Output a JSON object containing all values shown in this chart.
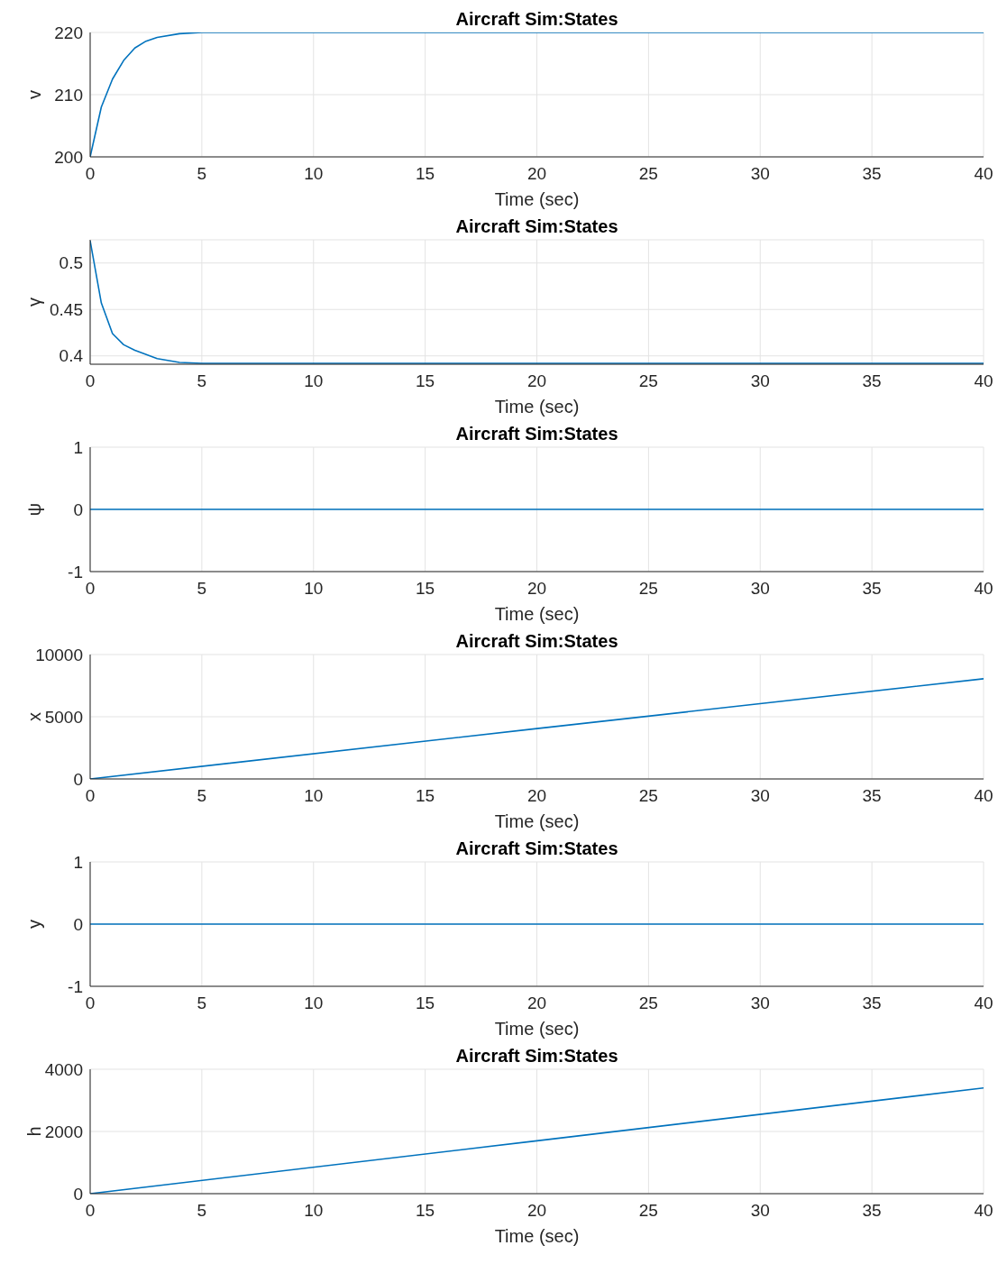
{
  "chart_data": [
    {
      "type": "line",
      "title": "Aircraft Sim:States",
      "xlabel": "Time (sec)",
      "ylabel": "v",
      "x": [
        0,
        0.5,
        1,
        1.5,
        2,
        2.5,
        3,
        4,
        5,
        40
      ],
      "values": [
        200,
        208,
        212.5,
        215.5,
        217.5,
        218.6,
        219.2,
        219.8,
        220,
        220
      ],
      "color": "#0072bd",
      "xlim": [
        0,
        40
      ],
      "xticks": [
        0,
        5,
        10,
        15,
        20,
        25,
        30,
        35,
        40
      ],
      "ylim": [
        200,
        220
      ],
      "yticks": [
        200,
        210,
        220
      ],
      "grid": true,
      "marker": "none",
      "line_style": "solid"
    },
    {
      "type": "line",
      "title": "Aircraft Sim:States",
      "xlabel": "Time (sec)",
      "ylabel": "γ",
      "x": [
        0,
        0.5,
        1,
        1.5,
        2,
        3,
        4,
        5,
        40
      ],
      "values": [
        0.524,
        0.457,
        0.424,
        0.412,
        0.406,
        0.397,
        0.393,
        0.392,
        0.392
      ],
      "color": "#0072bd",
      "xlim": [
        0,
        40
      ],
      "xticks": [
        0,
        5,
        10,
        15,
        20,
        25,
        30,
        35,
        40
      ],
      "ylim": [
        0.391,
        0.525
      ],
      "yticks": [
        0.4,
        0.45,
        0.5
      ],
      "grid": true,
      "marker": "none",
      "line_style": "solid"
    },
    {
      "type": "line",
      "title": "Aircraft Sim:States",
      "xlabel": "Time (sec)",
      "ylabel": "ψ",
      "x": [
        0,
        40
      ],
      "values": [
        0,
        0
      ],
      "color": "#0072bd",
      "xlim": [
        0,
        40
      ],
      "xticks": [
        0,
        5,
        10,
        15,
        20,
        25,
        30,
        35,
        40
      ],
      "ylim": [
        -1,
        1
      ],
      "yticks": [
        -1,
        0,
        1
      ],
      "grid": true,
      "marker": "none",
      "line_style": "solid"
    },
    {
      "type": "line",
      "title": "Aircraft Sim:States",
      "xlabel": "Time (sec)",
      "ylabel": "x",
      "x": [
        0,
        20,
        40
      ],
      "values": [
        0,
        4050,
        8050
      ],
      "color": "#0072bd",
      "xlim": [
        0,
        40
      ],
      "xticks": [
        0,
        5,
        10,
        15,
        20,
        25,
        30,
        35,
        40
      ],
      "ylim": [
        0,
        10000
      ],
      "yticks": [
        0,
        5000,
        10000
      ],
      "grid": true,
      "marker": "none",
      "line_style": "solid"
    },
    {
      "type": "line",
      "title": "Aircraft Sim:States",
      "xlabel": "Time (sec)",
      "ylabel": "y",
      "x": [
        0,
        40
      ],
      "values": [
        0,
        0
      ],
      "color": "#0072bd",
      "xlim": [
        0,
        40
      ],
      "xticks": [
        0,
        5,
        10,
        15,
        20,
        25,
        30,
        35,
        40
      ],
      "ylim": [
        -1,
        1
      ],
      "yticks": [
        -1,
        0,
        1
      ],
      "grid": true,
      "marker": "none",
      "line_style": "solid"
    },
    {
      "type": "line",
      "title": "Aircraft Sim:States",
      "xlabel": "Time (sec)",
      "ylabel": "h",
      "x": [
        0,
        20,
        40
      ],
      "values": [
        0,
        1700,
        3400
      ],
      "color": "#0072bd",
      "xlim": [
        0,
        40
      ],
      "xticks": [
        0,
        5,
        10,
        15,
        20,
        25,
        30,
        35,
        40
      ],
      "ylim": [
        0,
        4000
      ],
      "yticks": [
        0,
        2000,
        4000
      ],
      "grid": true,
      "marker": "none",
      "line_style": "solid"
    }
  ]
}
